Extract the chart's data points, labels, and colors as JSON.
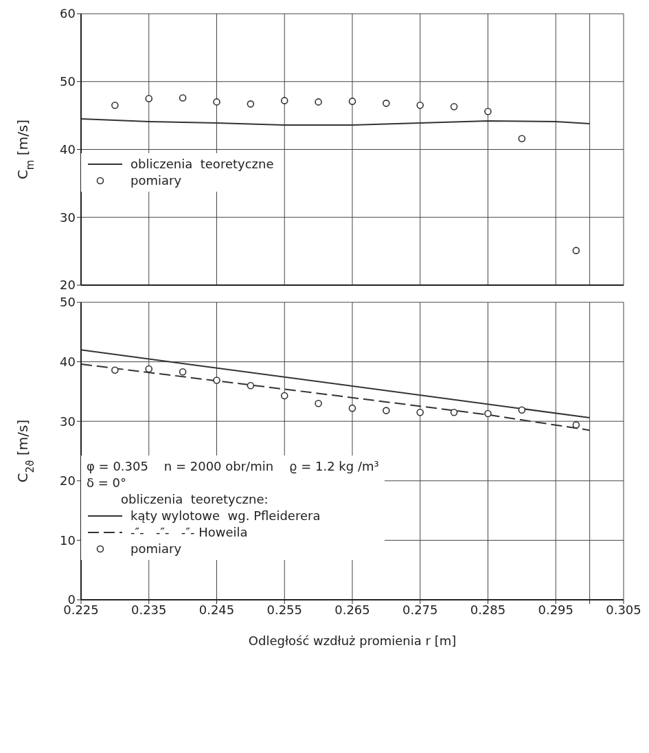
{
  "chart_data": [
    {
      "type": "line",
      "ylabel": "C$_{m}$ [m/s]",
      "xlim": [
        0.225,
        0.305
      ],
      "xticks": [
        0.225,
        0.235,
        0.245,
        0.255,
        0.265,
        0.275,
        0.285,
        0.295,
        {
          "value": 0.3,
          "label": null
        },
        0.305
      ],
      "ylim": [
        20,
        60
      ],
      "yticks": [
        20,
        30,
        40,
        50,
        60
      ],
      "grid": true,
      "tick_labels": "y",
      "legend": "left",
      "series": [
        {
          "name": "obliczenia  teoretyczne",
          "color": "#333333",
          "line_style": "solid",
          "marker": "none",
          "x": [
            0.225,
            0.235,
            0.245,
            0.255,
            0.265,
            0.275,
            0.285,
            0.295,
            0.3
          ],
          "values": [
            44.5,
            44.1,
            43.9,
            43.6,
            43.6,
            43.9,
            44.2,
            44.1,
            43.8
          ]
        },
        {
          "name": "pomiary",
          "type": "scatter",
          "color": "#333333",
          "marker": "circle",
          "x": [
            0.23,
            0.235,
            0.24,
            0.245,
            0.25,
            0.255,
            0.26,
            0.265,
            0.27,
            0.275,
            0.28,
            0.285,
            0.29,
            0.298
          ],
          "values": [
            46.5,
            47.5,
            47.6,
            47.0,
            46.7,
            47.2,
            47.0,
            47.1,
            46.8,
            46.5,
            46.3,
            45.6,
            41.6,
            25.1
          ]
        }
      ]
    },
    {
      "type": "line",
      "ylabel": "C$_{2ϑ}$ [m/s]",
      "xlabel": "Odległość  wzdłuż  promienia  r [m]",
      "xlim": [
        0.225,
        0.305
      ],
      "xticks": [
        0.225,
        0.235,
        0.245,
        0.255,
        0.265,
        0.275,
        0.285,
        0.295,
        {
          "value": 0.3,
          "label": null
        },
        0.305
      ],
      "ylim": [
        0,
        50
      ],
      "yticks": [
        0,
        10,
        20,
        30,
        40,
        50
      ],
      "grid": true,
      "legend": "bottom left",
      "legend_title": "obliczenia  teoretyczne:",
      "annotations": [
        "φ = 0.305    n = 2000 obr/min    ϱ = 1.2 kg /m³",
        "δ = 0°"
      ],
      "series": [
        {
          "name": "kąty wylotowe  wg. Pfleiderera",
          "color": "#333333",
          "line_style": "solid",
          "marker": "none",
          "x": [
            0.225,
            0.3
          ],
          "values": [
            42.0,
            30.6
          ]
        },
        {
          "name": "-″-   -″-   -″- Howeila",
          "color": "#333333",
          "line_style": "dashed",
          "marker": "none",
          "x": [
            0.225,
            0.255,
            0.285,
            0.3
          ],
          "values": [
            39.6,
            35.4,
            31.1,
            28.5
          ]
        },
        {
          "name": "pomiary",
          "type": "scatter",
          "color": "#333333",
          "marker": "circle",
          "x": [
            0.23,
            0.235,
            0.24,
            0.245,
            0.25,
            0.255,
            0.26,
            0.265,
            0.27,
            0.275,
            0.28,
            0.285,
            0.29,
            0.298
          ],
          "values": [
            38.6,
            38.8,
            38.3,
            36.9,
            36.0,
            34.3,
            33.0,
            32.2,
            31.8,
            31.5,
            31.5,
            31.3,
            31.9,
            29.4
          ]
        }
      ]
    }
  ]
}
